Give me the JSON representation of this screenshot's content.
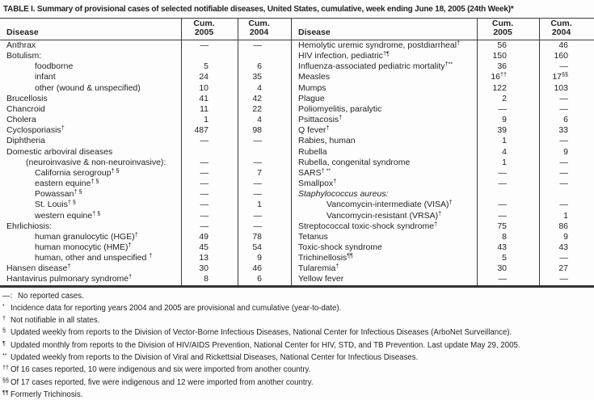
{
  "title": "TABLE I. Summary of provisional cases of selected notifiable diseases, United States, cumulative, week ending June 18, 2005 (24th Week)*",
  "table": {
    "header": {
      "disease": "Disease",
      "cum": "Cum.",
      "y2005": "2005",
      "y2004": "2004"
    },
    "left_rows": [
      {
        "label": "Anthrax",
        "sup": "",
        "indent": 0,
        "italic": false,
        "v1": "—",
        "v1s": "",
        "v2": "—",
        "v2s": ""
      },
      {
        "label": "Botulism:",
        "sup": "",
        "indent": 0,
        "italic": false,
        "v1": "",
        "v1s": "",
        "v2": "",
        "v2s": ""
      },
      {
        "label": "foodborne",
        "sup": "",
        "indent": 2,
        "italic": false,
        "v1": "5",
        "v1s": "",
        "v2": "6",
        "v2s": ""
      },
      {
        "label": "infant",
        "sup": "",
        "indent": 2,
        "italic": false,
        "v1": "24",
        "v1s": "",
        "v2": "35",
        "v2s": ""
      },
      {
        "label": "other (wound & unspecified)",
        "sup": "",
        "indent": 2,
        "italic": false,
        "v1": "10",
        "v1s": "",
        "v2": "4",
        "v2s": ""
      },
      {
        "label": "Brucellosis",
        "sup": "",
        "indent": 0,
        "italic": false,
        "v1": "41",
        "v1s": "",
        "v2": "42",
        "v2s": ""
      },
      {
        "label": "Chancroid",
        "sup": "",
        "indent": 0,
        "italic": false,
        "v1": "11",
        "v1s": "",
        "v2": "22",
        "v2s": ""
      },
      {
        "label": "Cholera",
        "sup": "",
        "indent": 0,
        "italic": false,
        "v1": "1",
        "v1s": "",
        "v2": "4",
        "v2s": ""
      },
      {
        "label": "Cyclosporiasis",
        "sup": "†",
        "indent": 0,
        "italic": false,
        "v1": "487",
        "v1s": "",
        "v2": "98",
        "v2s": ""
      },
      {
        "label": "Diphtheria",
        "sup": "",
        "indent": 0,
        "italic": false,
        "v1": "—",
        "v1s": "",
        "v2": "—",
        "v2s": ""
      },
      {
        "label": "Domestic arboviral diseases",
        "sup": "",
        "indent": 0,
        "italic": false,
        "v1": "",
        "v1s": "",
        "v2": "",
        "v2s": ""
      },
      {
        "label": "(neuroinvasive & non-neuroinvasive):",
        "sup": "",
        "indent": 1,
        "italic": false,
        "v1": "—",
        "v1s": "",
        "v2": "—",
        "v2s": ""
      },
      {
        "label": "California serogroup",
        "sup": "† §",
        "indent": 2,
        "italic": false,
        "v1": "—",
        "v1s": "",
        "v2": "7",
        "v2s": ""
      },
      {
        "label": "eastern equine",
        "sup": "† §",
        "indent": 2,
        "italic": false,
        "v1": "—",
        "v1s": "",
        "v2": "—",
        "v2s": ""
      },
      {
        "label": "Powassan",
        "sup": "† §",
        "indent": 2,
        "italic": false,
        "v1": "—",
        "v1s": "",
        "v2": "—",
        "v2s": ""
      },
      {
        "label": "St. Louis",
        "sup": "† §",
        "indent": 2,
        "italic": false,
        "v1": "—",
        "v1s": "",
        "v2": "1",
        "v2s": ""
      },
      {
        "label": "western equine",
        "sup": "† §",
        "indent": 2,
        "italic": false,
        "v1": "—",
        "v1s": "",
        "v2": "—",
        "v2s": ""
      },
      {
        "label": "Ehrlichiosis:",
        "sup": "",
        "indent": 0,
        "italic": false,
        "v1": "—",
        "v1s": "",
        "v2": "—",
        "v2s": ""
      },
      {
        "label": "human granulocytic (HGE)",
        "sup": "†",
        "indent": 2,
        "italic": false,
        "v1": "49",
        "v1s": "",
        "v2": "78",
        "v2s": ""
      },
      {
        "label": "human monocytic (HME)",
        "sup": "†",
        "indent": 2,
        "italic": false,
        "v1": "45",
        "v1s": "",
        "v2": "54",
        "v2s": ""
      },
      {
        "label": "human, other and unspecified ",
        "sup": "†",
        "indent": 2,
        "italic": false,
        "v1": "13",
        "v1s": "",
        "v2": "9",
        "v2s": ""
      },
      {
        "label": "Hansen disease",
        "sup": "†",
        "indent": 0,
        "italic": false,
        "v1": "30",
        "v1s": "",
        "v2": "46",
        "v2s": ""
      },
      {
        "label": "Hantavirus pulmonary syndrome",
        "sup": "†",
        "indent": 0,
        "italic": false,
        "v1": "8",
        "v1s": "",
        "v2": "6",
        "v2s": ""
      }
    ],
    "right_rows": [
      {
        "label": "Hemolytic uremic syndrome, postdiarrheal",
        "sup": "†",
        "indent": 0,
        "italic": false,
        "v1": "56",
        "v1s": "",
        "v2": "46",
        "v2s": ""
      },
      {
        "label": "HIV infection, pediatric",
        "sup": "†¶",
        "indent": 0,
        "italic": false,
        "v1": "150",
        "v1s": "",
        "v2": "160",
        "v2s": ""
      },
      {
        "label": "Influenza-associated pediatric mortality",
        "sup": "†**",
        "indent": 0,
        "italic": false,
        "v1": "36",
        "v1s": "",
        "v2": "—",
        "v2s": ""
      },
      {
        "label": "Measles",
        "sup": "",
        "indent": 0,
        "italic": false,
        "v1": "16",
        "v1s": "††",
        "v2": "17",
        "v2s": "§§"
      },
      {
        "label": "Mumps",
        "sup": "",
        "indent": 0,
        "italic": false,
        "v1": "122",
        "v1s": "",
        "v2": "103",
        "v2s": ""
      },
      {
        "label": "Plague",
        "sup": "",
        "indent": 0,
        "italic": false,
        "v1": "2",
        "v1s": "",
        "v2": "—",
        "v2s": ""
      },
      {
        "label": "Poliomyelitis, paralytic",
        "sup": "",
        "indent": 0,
        "italic": false,
        "v1": "—",
        "v1s": "",
        "v2": "—",
        "v2s": ""
      },
      {
        "label": "Psittacosis",
        "sup": "†",
        "indent": 0,
        "italic": false,
        "v1": "9",
        "v1s": "",
        "v2": "6",
        "v2s": ""
      },
      {
        "label": "Q fever",
        "sup": "†",
        "indent": 0,
        "italic": false,
        "v1": "39",
        "v1s": "",
        "v2": "33",
        "v2s": ""
      },
      {
        "label": "Rabies, human",
        "sup": "",
        "indent": 0,
        "italic": false,
        "v1": "1",
        "v1s": "",
        "v2": "—",
        "v2s": ""
      },
      {
        "label": "Rubella",
        "sup": "",
        "indent": 0,
        "italic": false,
        "v1": "4",
        "v1s": "",
        "v2": "9",
        "v2s": ""
      },
      {
        "label": "Rubella, congenital syndrome",
        "sup": "",
        "indent": 0,
        "italic": false,
        "v1": "1",
        "v1s": "",
        "v2": "—",
        "v2s": ""
      },
      {
        "label": "SARS",
        "sup": "† **",
        "indent": 0,
        "italic": false,
        "v1": "—",
        "v1s": "",
        "v2": "—",
        "v2s": ""
      },
      {
        "label": "Smallpox",
        "sup": "†",
        "indent": 0,
        "italic": false,
        "v1": "—",
        "v1s": "",
        "v2": "—",
        "v2s": ""
      },
      {
        "label": "Staphylococcus aureus:",
        "sup": "",
        "indent": 0,
        "italic": true,
        "v1": "",
        "v1s": "",
        "v2": "",
        "v2s": ""
      },
      {
        "label": "Vancomycin-intermediate (VISA)",
        "sup": "†",
        "indent": 2,
        "italic": false,
        "v1": "—",
        "v1s": "",
        "v2": "—",
        "v2s": ""
      },
      {
        "label": "Vancomycin-resistant (VRSA)",
        "sup": "†",
        "indent": 2,
        "italic": false,
        "v1": "—",
        "v1s": "",
        "v2": "1",
        "v2s": ""
      },
      {
        "label": "Streptococcal toxic-shock syndrome",
        "sup": "†",
        "indent": 0,
        "italic": false,
        "v1": "75",
        "v1s": "",
        "v2": "86",
        "v2s": ""
      },
      {
        "label": "Tetanus",
        "sup": "",
        "indent": 0,
        "italic": false,
        "v1": "8",
        "v1s": "",
        "v2": "9",
        "v2s": ""
      },
      {
        "label": "Toxic-shock syndrome",
        "sup": "",
        "indent": 0,
        "italic": false,
        "v1": "43",
        "v1s": "",
        "v2": "43",
        "v2s": ""
      },
      {
        "label": "Trichinellosis",
        "sup": "¶¶",
        "indent": 0,
        "italic": false,
        "v1": "5",
        "v1s": "",
        "v2": "—",
        "v2s": ""
      },
      {
        "label": "Tularemia",
        "sup": "†",
        "indent": 0,
        "italic": false,
        "v1": "30",
        "v1s": "",
        "v2": "27",
        "v2s": ""
      },
      {
        "label": "Yellow fever",
        "sup": "",
        "indent": 0,
        "italic": false,
        "v1": "—",
        "v1s": "",
        "v2": "—",
        "v2s": ""
      }
    ]
  },
  "footnotes": [
    {
      "marker": "—:",
      "inline": true,
      "text": "No reported cases."
    },
    {
      "marker": "*",
      "inline": false,
      "text": "Incidence data for reporting years 2004 and 2005 are provisional and cumulative (year-to-date)."
    },
    {
      "marker": "†",
      "inline": false,
      "text": "Not notifiable in all states."
    },
    {
      "marker": "§",
      "inline": false,
      "text": "Updated weekly from reports to the Division of Vector-Borne Infectious Diseases, National Center for Infectious Diseases (ArboNet Surveillance)."
    },
    {
      "marker": "¶",
      "inline": false,
      "text": "Updated monthly from reports to the Division of HIV/AIDS Prevention, National Center for HIV, STD, and TB Prevention. Last update May 29, 2005."
    },
    {
      "marker": "**",
      "inline": false,
      "text": "Updated weekly from reports to the Division of Viral and Rickettsial Diseases, National Center for Infectious Diseases."
    },
    {
      "marker": "††",
      "inline": false,
      "text": "Of 16 cases reported, 10 were indigenous and six were imported from another country."
    },
    {
      "marker": "§§",
      "inline": false,
      "text": "Of 17 cases reported, five were indigenous and 12 were imported from another country."
    },
    {
      "marker": "¶¶",
      "inline": false,
      "text": "Formerly Trichinosis."
    }
  ]
}
